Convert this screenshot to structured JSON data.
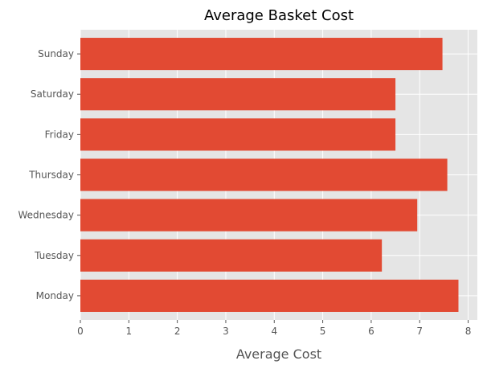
{
  "chart_data": {
    "type": "bar",
    "orientation": "horizontal",
    "title": "Average Basket Cost",
    "xlabel": "Average Cost",
    "ylabel": "",
    "categories": [
      "Monday",
      "Tuesday",
      "Wednesday",
      "Thursday",
      "Friday",
      "Saturday",
      "Sunday"
    ],
    "values": [
      7.8,
      6.22,
      6.95,
      7.57,
      6.5,
      6.5,
      7.47
    ],
    "xlim": [
      0,
      8.19
    ],
    "xticks": [
      0,
      1,
      2,
      3,
      4,
      5,
      6,
      7,
      8
    ],
    "grid": true,
    "legend": "none",
    "colors": {
      "bar": "#E24A33",
      "plot_background": "#E5E5E5",
      "grid": "#FFFFFF",
      "text": "#555555",
      "title": "#000000"
    }
  }
}
